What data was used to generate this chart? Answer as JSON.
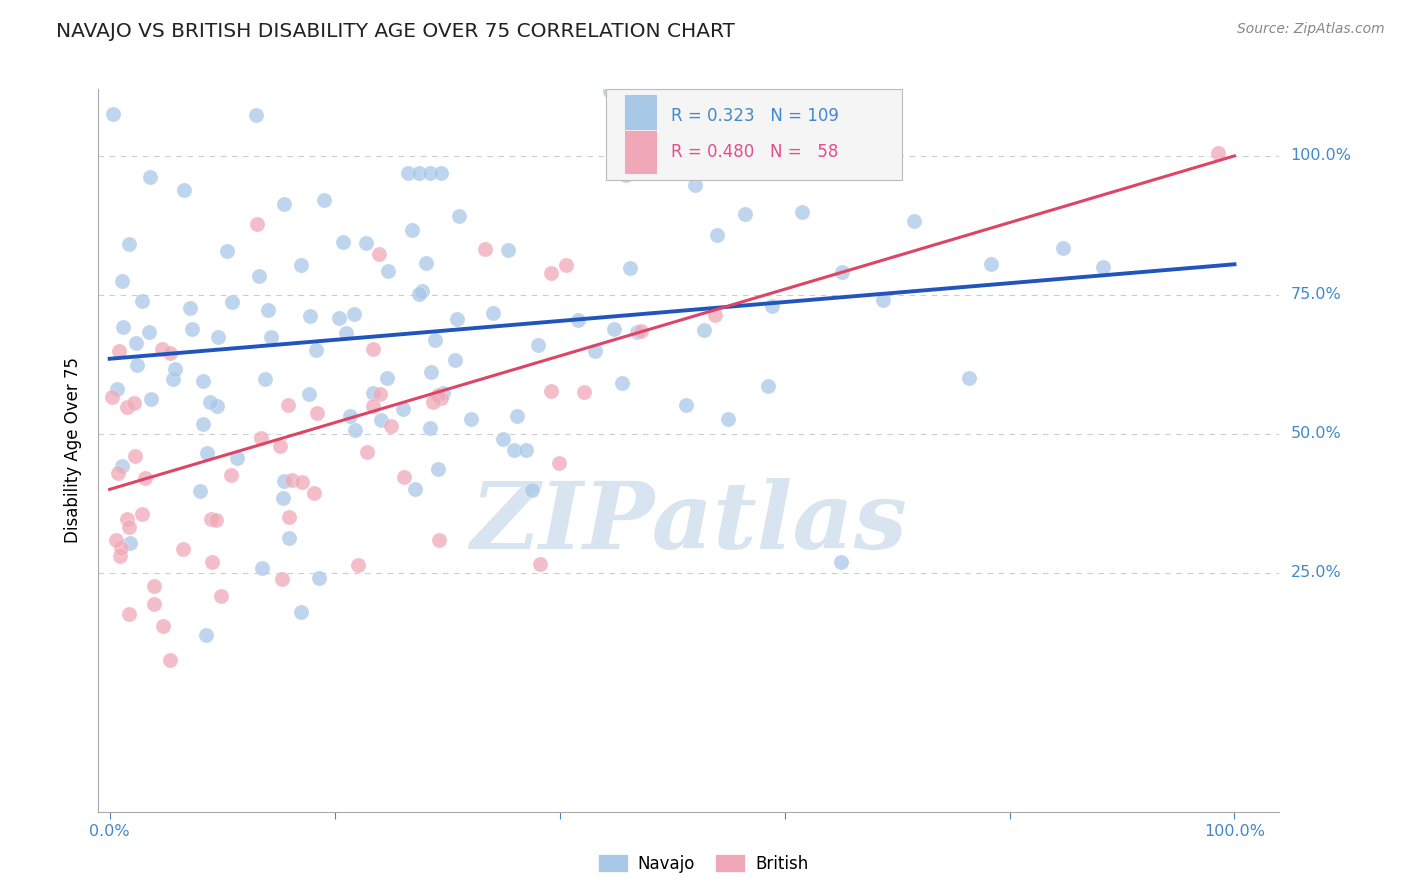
{
  "title": "NAVAJO VS BRITISH DISABILITY AGE OVER 75 CORRELATION CHART",
  "source_text": "Source: ZipAtlas.com",
  "ylabel": "Disability Age Over 75",
  "navajo_R": 0.323,
  "navajo_N": 109,
  "british_R": 0.48,
  "british_N": 58,
  "navajo_color": "#a8c8e8",
  "british_color": "#f0a8b8",
  "navajo_line_color": "#2255bb",
  "british_line_color": "#dd4466",
  "background_color": "#ffffff",
  "grid_color": "#cccccc",
  "watermark_color": "#d8e4f0",
  "right_label_color": "#4488cc",
  "title_color": "#222222",
  "source_color": "#888888",
  "navajo_line_x0": 0.0,
  "navajo_line_y0": 0.635,
  "navajo_line_x1": 1.0,
  "navajo_line_y1": 0.805,
  "british_line_x0": 0.0,
  "british_line_y0": 0.4,
  "british_line_x1": 1.0,
  "british_line_y1": 1.0,
  "xlim_min": -0.01,
  "xlim_max": 1.04,
  "ylim_min": -0.18,
  "ylim_max": 1.12,
  "ytick_positions": [
    0.25,
    0.5,
    0.75,
    1.0
  ],
  "ytick_labels": [
    "25.0%",
    "50.0%",
    "75.0%",
    "100.0%"
  ],
  "xtick_positions": [
    0.0,
    0.2,
    0.4,
    0.6,
    0.8,
    1.0
  ],
  "xtick_labels_show": [
    "0.0%",
    "",
    "",
    "",
    "",
    "100.0%"
  ],
  "navajo_seed": 7,
  "british_seed": 13,
  "marker_size": 120,
  "marker_alpha": 0.75
}
